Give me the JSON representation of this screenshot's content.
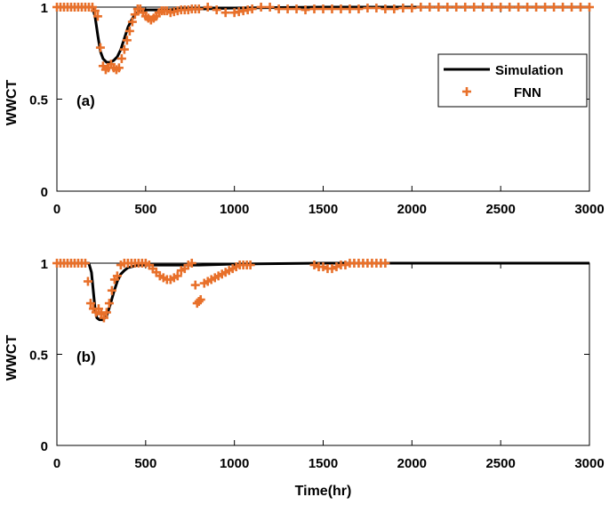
{
  "chart_data": [
    {
      "type": "line",
      "panel_label": "(a)",
      "xlabel": "",
      "ylabel": "WWCT",
      "xlim": [
        0,
        3000
      ],
      "ylim": [
        0,
        1
      ],
      "xticks": [
        0,
        500,
        1000,
        1500,
        2000,
        2500,
        3000
      ],
      "yticks": [
        0,
        0.5,
        1
      ],
      "xtick_labels": [
        "0",
        "500",
        "1000",
        "1500",
        "2000",
        "2500",
        "3000"
      ],
      "ytick_labels": [
        "0",
        "0.5",
        "1"
      ],
      "legend": {
        "placement": "right",
        "entries": [
          "Simulation",
          "FNN"
        ]
      },
      "series": [
        {
          "name": "Simulation",
          "style": "line",
          "color": "#000000",
          "x": [
            0,
            200,
            215,
            230,
            245,
            260,
            280,
            300,
            320,
            340,
            360,
            380,
            400,
            420,
            440,
            460,
            480,
            500,
            560,
            620,
            700,
            800,
            1000,
            1500,
            3000
          ],
          "y": [
            1.0,
            1.0,
            0.95,
            0.85,
            0.76,
            0.72,
            0.7,
            0.7,
            0.71,
            0.73,
            0.77,
            0.83,
            0.89,
            0.93,
            0.96,
            0.975,
            0.98,
            0.985,
            0.985,
            0.985,
            0.99,
            0.99,
            0.995,
            1.0,
            1.0
          ]
        },
        {
          "name": "FNN",
          "style": "marker",
          "marker": "plus",
          "color": "#e8702a",
          "x": [
            0,
            20,
            40,
            60,
            80,
            100,
            120,
            140,
            160,
            180,
            200,
            215,
            230,
            245,
            260,
            275,
            290,
            305,
            320,
            335,
            350,
            365,
            380,
            395,
            410,
            425,
            440,
            455,
            470,
            485,
            500,
            515,
            530,
            545,
            560,
            575,
            590,
            605,
            620,
            640,
            660,
            680,
            700,
            720,
            740,
            760,
            780,
            800,
            850,
            900,
            950,
            1000,
            1025,
            1050,
            1075,
            1100,
            1150,
            1200,
            1250,
            1300,
            1350,
            1400,
            1450,
            1500,
            1550,
            1600,
            1650,
            1700,
            1750,
            1800,
            1850,
            1900,
            1950,
            2000,
            2050,
            2100,
            2150,
            2200,
            2250,
            2300,
            2350,
            2400,
            2450,
            2500,
            2550,
            2600,
            2650,
            2700,
            2750,
            2800,
            2850,
            2900,
            2950,
            3000
          ],
          "y": [
            1.0,
            1.0,
            1.0,
            1.0,
            1.0,
            1.0,
            1.0,
            1.0,
            1.0,
            1.0,
            1.0,
            0.98,
            0.95,
            0.78,
            0.68,
            0.66,
            0.67,
            0.69,
            0.67,
            0.66,
            0.67,
            0.72,
            0.77,
            0.82,
            0.87,
            0.92,
            0.96,
            0.99,
            0.99,
            0.97,
            0.95,
            0.94,
            0.93,
            0.94,
            0.95,
            0.97,
            0.98,
            0.98,
            0.98,
            0.97,
            0.975,
            0.98,
            0.985,
            0.985,
            0.985,
            0.99,
            0.99,
            0.99,
            1.0,
            0.985,
            0.97,
            0.97,
            0.975,
            0.98,
            0.985,
            0.99,
            1.0,
            1.0,
            0.99,
            0.99,
            0.99,
            0.985,
            0.99,
            0.99,
            0.99,
            0.99,
            0.99,
            0.99,
            0.995,
            0.995,
            0.99,
            0.99,
            0.995,
            0.995,
            1.0,
            1.0,
            1.0,
            1.0,
            1.0,
            1.0,
            1.0,
            1.0,
            1.0,
            1.0,
            1.0,
            1.0,
            1.0,
            1.0,
            1.0,
            1.0,
            1.0,
            1.0,
            1.0,
            1.0
          ]
        }
      ]
    },
    {
      "type": "line",
      "panel_label": "(b)",
      "xlabel": "Time(hr)",
      "ylabel": "WWCT",
      "xlim": [
        0,
        3000
      ],
      "ylim": [
        0,
        1
      ],
      "xticks": [
        0,
        500,
        1000,
        1500,
        2000,
        2500,
        3000
      ],
      "yticks": [
        0,
        0.5,
        1
      ],
      "xtick_labels": [
        "0",
        "500",
        "1000",
        "1500",
        "2000",
        "2500",
        "3000"
      ],
      "ytick_labels": [
        "0",
        "0.5",
        "1"
      ],
      "series": [
        {
          "name": "Simulation",
          "style": "line",
          "color": "#000000",
          "x": [
            0,
            180,
            195,
            205,
            215,
            225,
            240,
            260,
            280,
            300,
            320,
            340,
            360,
            380,
            400,
            420,
            440,
            460,
            500,
            600,
            700,
            800,
            1000,
            1500,
            3000
          ],
          "y": [
            1.0,
            1.0,
            0.95,
            0.85,
            0.75,
            0.7,
            0.69,
            0.69,
            0.71,
            0.77,
            0.84,
            0.9,
            0.94,
            0.96,
            0.975,
            0.98,
            0.985,
            0.99,
            0.99,
            0.99,
            0.99,
            0.99,
            0.995,
            1.0,
            1.0
          ]
        },
        {
          "name": "FNN",
          "style": "marker",
          "marker": "plus",
          "color": "#e8702a",
          "x": [
            0,
            20,
            40,
            60,
            80,
            100,
            120,
            140,
            160,
            175,
            190,
            205,
            220,
            235,
            250,
            265,
            280,
            295,
            310,
            325,
            340,
            360,
            380,
            400,
            420,
            440,
            460,
            480,
            500,
            520,
            540,
            560,
            580,
            600,
            620,
            640,
            660,
            680,
            700,
            720,
            740,
            760,
            780,
            790,
            800,
            810,
            830,
            850,
            870,
            890,
            910,
            930,
            950,
            970,
            990,
            1010,
            1030,
            1050,
            1070,
            1090,
            1450,
            1475,
            1500,
            1525,
            1550,
            1575,
            1600,
            1625,
            1650,
            1675,
            1700,
            1725,
            1750,
            1775,
            1800,
            1825,
            1850
          ],
          "y": [
            1.0,
            1.0,
            1.0,
            1.0,
            1.0,
            1.0,
            1.0,
            1.0,
            1.0,
            0.9,
            0.78,
            0.75,
            0.73,
            0.75,
            0.72,
            0.7,
            0.73,
            0.78,
            0.85,
            0.91,
            0.93,
            0.99,
            1.0,
            1.0,
            1.0,
            1.0,
            1.0,
            1.0,
            1.0,
            0.99,
            0.97,
            0.95,
            0.93,
            0.92,
            0.91,
            0.91,
            0.92,
            0.93,
            0.96,
            0.97,
            0.99,
            1.0,
            0.88,
            0.78,
            0.79,
            0.8,
            0.89,
            0.9,
            0.91,
            0.92,
            0.93,
            0.94,
            0.95,
            0.96,
            0.97,
            0.98,
            0.99,
            0.99,
            0.99,
            0.99,
            0.99,
            0.98,
            0.98,
            0.97,
            0.97,
            0.98,
            0.99,
            0.99,
            1.0,
            1.0,
            1.0,
            1.0,
            1.0,
            1.0,
            1.0,
            1.0,
            1.0
          ]
        }
      ]
    }
  ]
}
